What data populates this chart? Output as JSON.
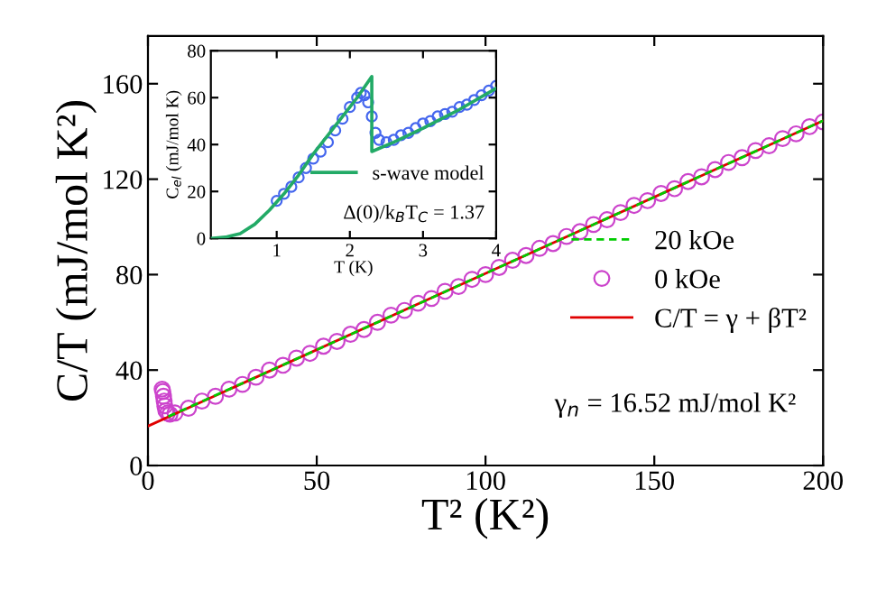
{
  "chart_data": [
    {
      "type": "line",
      "xlabel": "T² (K²)",
      "ylabel": "C/T (mJ/mol K²)",
      "xlim": [
        0,
        200
      ],
      "ylim": [
        0,
        180
      ],
      "xticks": [
        0,
        50,
        100,
        150,
        200
      ],
      "yticks": [
        0,
        40,
        80,
        120,
        160
      ],
      "grid": false,
      "legend": "bottom right",
      "annotations": [
        "γ$_{n}$ = 16.52 mJ/mol K²"
      ],
      "series": [
        {
          "name": "20 kOe",
          "line_style": "dashed",
          "color": "#00cc00",
          "x": [
            6,
            50,
            100,
            150,
            200
          ],
          "values": [
            20.5,
            48.5,
            80.5,
            112.5,
            144.5
          ]
        },
        {
          "name": "0 kOe",
          "type": "scatter",
          "marker": "circle",
          "color": "#cc44cc",
          "x": [
            4.2,
            4.4,
            4.6,
            4.8,
            5.0,
            5.3,
            5.8,
            6.5,
            8,
            12,
            16,
            20,
            24,
            28,
            32,
            36,
            40,
            44,
            48,
            52,
            56,
            60,
            64,
            68,
            72,
            76,
            80,
            84,
            88,
            92,
            96,
            100,
            104,
            108,
            112,
            116,
            120,
            124,
            128,
            132,
            136,
            140,
            144,
            148,
            152,
            156,
            160,
            164,
            168,
            172,
            176,
            180,
            184,
            188,
            192,
            196,
            200
          ],
          "values": [
            32,
            31,
            29,
            27,
            25,
            23,
            22,
            21.5,
            22,
            24,
            27,
            29,
            32,
            34,
            37,
            40,
            42,
            45,
            47,
            50,
            52,
            55,
            57,
            60,
            63,
            65,
            68,
            70,
            73,
            75,
            78,
            80,
            83,
            86,
            88,
            91,
            93,
            96,
            98,
            101,
            103,
            106,
            109,
            111,
            114,
            116,
            119,
            121,
            124,
            127,
            129,
            132,
            134,
            137,
            139,
            142,
            144
          ]
        },
        {
          "name": "C/T = γ + βT²",
          "line_style": "solid",
          "color": "#e00000",
          "x": [
            0,
            200
          ],
          "values": [
            16.5,
            144.5
          ]
        }
      ]
    },
    {
      "type": "line",
      "xlabel": "T (K)",
      "ylabel": "C$_{el}$ (mJ/mol K)",
      "xlim": [
        0.1,
        4
      ],
      "ylim": [
        0,
        80
      ],
      "xticks": [
        1,
        2,
        3,
        4
      ],
      "yticks": [
        0,
        20,
        40,
        60,
        80
      ],
      "grid": false,
      "legend": "right",
      "annotations": [
        "Δ(0)/k$_{B}$T$_{C}$ = 1.37"
      ],
      "series": [
        {
          "type": "scatter",
          "marker": "circle",
          "color": "#4466ee",
          "x": [
            1.0,
            1.1,
            1.2,
            1.3,
            1.4,
            1.5,
            1.6,
            1.7,
            1.8,
            1.9,
            2.0,
            2.1,
            2.15,
            2.2,
            2.25,
            2.3,
            2.35,
            2.4,
            2.5,
            2.6,
            2.7,
            2.8,
            2.9,
            3.0,
            3.1,
            3.2,
            3.3,
            3.4,
            3.5,
            3.6,
            3.7,
            3.8,
            3.9,
            4.0
          ],
          "values": [
            16,
            19,
            22,
            26,
            30,
            34,
            37,
            41,
            46,
            51,
            56,
            60,
            62,
            61,
            58,
            52,
            45,
            42,
            41,
            42,
            44,
            45,
            47,
            49,
            50,
            52,
            53,
            54,
            56,
            57,
            59,
            61,
            63,
            65
          ]
        },
        {
          "name": "s-wave model",
          "line_style": "solid",
          "color": "#22aa66",
          "x": [
            0.1,
            0.3,
            0.5,
            0.7,
            0.9,
            1.1,
            1.3,
            1.5,
            1.7,
            1.9,
            2.1,
            2.3,
            2.3,
            2.6,
            3.0,
            3.5,
            4.0
          ],
          "values": [
            0,
            0.5,
            2,
            6,
            12,
            19,
            27,
            36,
            44,
            52,
            60,
            69,
            37,
            41,
            47,
            55,
            64
          ]
        }
      ]
    }
  ]
}
